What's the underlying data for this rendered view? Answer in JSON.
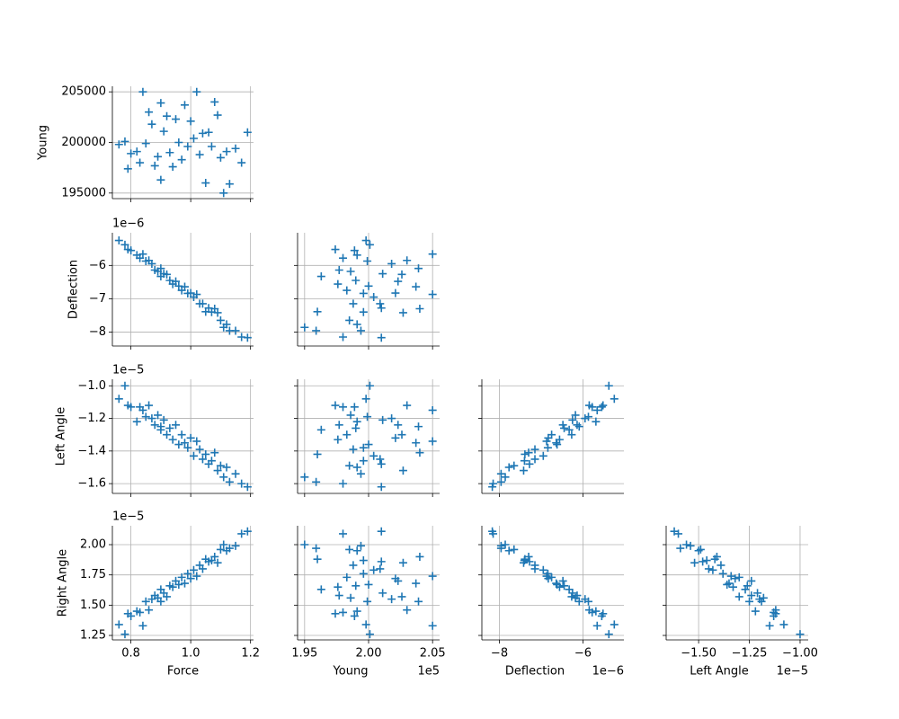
{
  "chart_data": {
    "type": "pairplot",
    "marker": "+",
    "color": "#1f77b4",
    "grid": true,
    "variables": [
      {
        "name": "Force",
        "lim": [
          0.738,
          1.21
        ],
        "xticks": [
          0.8,
          {
            "value": 1,
            "label": "1.0"
          },
          1.2
        ],
        "values": [
          0.76,
          0.78,
          0.79,
          0.8,
          0.82,
          0.83,
          0.84,
          0.85,
          0.86,
          0.87,
          0.88,
          0.89,
          0.9,
          0.9,
          0.91,
          0.92,
          0.93,
          0.94,
          0.95,
          0.96,
          0.97,
          0.98,
          0.99,
          1.0,
          1.01,
          1.02,
          1.03,
          1.04,
          1.05,
          1.06,
          1.07,
          1.08,
          1.09,
          1.1,
          1.11,
          1.12,
          1.13,
          1.15,
          1.17,
          1.19
        ]
      },
      {
        "name": "Young",
        "lim": [
          194450,
          205550
        ],
        "x_offset": "1e5",
        "xticks": [
          {
            "value": 195000,
            "label": "1.95"
          },
          {
            "value": 200000,
            "label": "2.00"
          },
          {
            "value": 205000,
            "label": "2.05"
          }
        ],
        "yticks": [
          195000,
          200000,
          205000
        ],
        "values": [
          199800,
          200100,
          197400,
          198900,
          199100,
          198000,
          205000,
          199900,
          203000,
          201800,
          197700,
          198600,
          203900,
          196300,
          201100,
          202600,
          199000,
          197600,
          202300,
          200000,
          198300,
          203700,
          199600,
          202100,
          200400,
          205000,
          198800,
          200900,
          196000,
          201000,
          199600,
          204000,
          202700,
          198500,
          195000,
          199100,
          195900,
          199400,
          198000,
          201000
        ]
      },
      {
        "name": "Deflection",
        "lim": [
          -8.42e-06,
          -5.02e-06
        ],
        "offset": "1e−6",
        "xticks": [
          {
            "value": -8e-06,
            "label": "−8"
          },
          {
            "value": -6e-06,
            "label": "−6"
          }
        ],
        "yticks": [
          {
            "value": -8e-06,
            "label": "−8"
          },
          {
            "value": -7e-06,
            "label": "−7"
          },
          {
            "value": -6e-06,
            "label": "−6"
          }
        ],
        "values": [
          -5.25e-06,
          -5.38e-06,
          -5.52e-06,
          -5.55e-06,
          -5.69e-06,
          -5.78e-06,
          -5.66e-06,
          -5.87e-06,
          -5.85e-06,
          -5.95e-06,
          -6.14e-06,
          -6.18e-06,
          -6.09e-06,
          -6.33e-06,
          -6.25e-06,
          -6.27e-06,
          -6.45e-06,
          -6.56e-06,
          -6.48e-06,
          -6.62e-06,
          -6.75e-06,
          -6.64e-06,
          -6.84e-06,
          -6.83e-06,
          -6.95e-06,
          -6.87e-06,
          -7.15e-06,
          -7.15e-06,
          -7.39e-06,
          -7.28e-06,
          -7.4e-06,
          -7.3e-06,
          -7.42e-06,
          -7.65e-06,
          -7.86e-06,
          -7.77e-06,
          -7.96e-06,
          -7.96e-06,
          -8.15e-06,
          -8.17e-06
        ]
      },
      {
        "name": "Left Angle",
        "lim": [
          -1.66e-05,
          -9.6e-06
        ],
        "offset": "1e−5",
        "xticks": [
          {
            "value": -1.5e-05,
            "label": "−1.50"
          },
          {
            "value": -1.25e-05,
            "label": "−1.25"
          },
          {
            "value": -1e-05,
            "label": "−1.00"
          }
        ],
        "yticks": [
          {
            "value": -1.6e-05,
            "label": "−1.6"
          },
          {
            "value": -1.4e-05,
            "label": "−1.4"
          },
          {
            "value": -1.2e-05,
            "label": "−1.2"
          },
          {
            "value": -1e-05,
            "label": "−1.0"
          }
        ],
        "values": [
          -1.08e-05,
          -1e-05,
          -1.12e-05,
          -1.13e-05,
          -1.22e-05,
          -1.13e-05,
          -1.15e-05,
          -1.19e-05,
          -1.12e-05,
          -1.2e-05,
          -1.24e-05,
          -1.18e-05,
          -1.25e-05,
          -1.27e-05,
          -1.21e-05,
          -1.3e-05,
          -1.26e-05,
          -1.33e-05,
          -1.24e-05,
          -1.36e-05,
          -1.3e-05,
          -1.35e-05,
          -1.38e-05,
          -1.32e-05,
          -1.43e-05,
          -1.34e-05,
          -1.39e-05,
          -1.45e-05,
          -1.42e-05,
          -1.48e-05,
          -1.46e-05,
          -1.41e-05,
          -1.52e-05,
          -1.49e-05,
          -1.56e-05,
          -1.5e-05,
          -1.59e-05,
          -1.54e-05,
          -1.6e-05,
          -1.62e-05
        ]
      },
      {
        "name": "Right Angle",
        "lim": [
          1.213e-05,
          2.156e-05
        ],
        "offset": "1e−5",
        "yticks": [
          {
            "value": 1.25e-05,
            "label": "1.25"
          },
          {
            "value": 1.5e-05,
            "label": "1.50"
          },
          {
            "value": 1.75e-05,
            "label": "1.75"
          },
          {
            "value": 2e-05,
            "label": "2.00"
          }
        ],
        "values": [
          1.34e-05,
          1.26e-05,
          1.43e-05,
          1.41e-05,
          1.45e-05,
          1.44e-05,
          1.33e-05,
          1.53e-05,
          1.46e-05,
          1.55e-05,
          1.58e-05,
          1.56e-05,
          1.53e-05,
          1.63e-05,
          1.6e-05,
          1.57e-05,
          1.66e-05,
          1.65e-05,
          1.7e-05,
          1.67e-05,
          1.73e-05,
          1.68e-05,
          1.76e-05,
          1.72e-05,
          1.79e-05,
          1.74e-05,
          1.83e-05,
          1.8e-05,
          1.88e-05,
          1.86e-05,
          1.87e-05,
          1.9e-05,
          1.85e-05,
          1.96e-05,
          2e-05,
          1.95e-05,
          1.97e-05,
          1.99e-05,
          2.09e-05,
          2.11e-05
        ]
      }
    ]
  }
}
